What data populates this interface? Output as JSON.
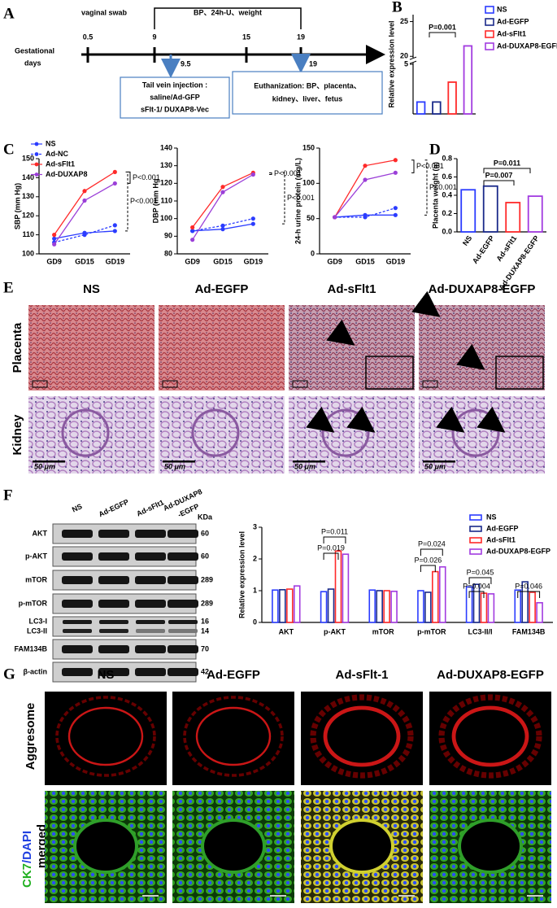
{
  "panels": [
    "A",
    "B",
    "C",
    "D",
    "E",
    "F",
    "G"
  ],
  "timeline": {
    "axis_label": [
      "Gestational",
      "days"
    ],
    "vaginal_swab": "vaginal swab",
    "measure": "BP、24h-U、weight",
    "ticks": [
      "0.5",
      "9",
      "15",
      "19"
    ],
    "arrows": [
      "9.5",
      "19"
    ],
    "box_injection": [
      "Tail vein injection :",
      "saline/Ad-GFP",
      "sFlt-1/ DUXAP8-Vec"
    ],
    "box_euthanization": [
      "Euthanization: BP、placenta、",
      "kidney、liver、fetus"
    ]
  },
  "chart_data": [
    {
      "type": "bar",
      "y_label": "Relative expression level",
      "categories": [
        "NS",
        "Ad-EGFP",
        "Ad-sFlt1",
        "Ad-DUXAP8-EGFP"
      ],
      "values": [
        1.2,
        1.2,
        3.2,
        21.5
      ],
      "colors": [
        "#2b3cff",
        "#1a2a8a",
        "#ff2a2a",
        "#a23be0"
      ],
      "ylim": [
        0,
        26
      ],
      "ybreak": [
        5,
        20
      ],
      "yticks": [
        5,
        20,
        25
      ],
      "legend": true,
      "annotations": [
        "P=0.001"
      ]
    },
    {
      "type": "line",
      "y_label": "SBP (mm Hg)",
      "categories": [
        "GD9",
        "GD15",
        "GD19"
      ],
      "ylim": [
        100,
        150
      ],
      "yticks": [
        100,
        110,
        120,
        130,
        140,
        150
      ],
      "legend": true,
      "series": [
        {
          "name": "NS",
          "color": "#2b3cff",
          "dashed": false,
          "values": [
            108,
            111,
            112
          ]
        },
        {
          "name": "Ad-NC",
          "color": "#2b3cff",
          "dashed": true,
          "values": [
            106,
            110,
            115
          ]
        },
        {
          "name": "Ad-sFlt1",
          "color": "#ff2a2a",
          "dashed": false,
          "values": [
            110,
            133,
            143
          ]
        },
        {
          "name": "Ad-DUXAP8",
          "color": "#9b3fd8",
          "dashed": false,
          "values": [
            105,
            128,
            137
          ]
        }
      ],
      "annotations": [
        "P<0.001",
        "P<0.001"
      ]
    },
    {
      "type": "line",
      "y_label": "DBP (mm Hg",
      "categories": [
        "GD9",
        "GD15",
        "GD19"
      ],
      "ylim": [
        80,
        140
      ],
      "yticks": [
        80,
        90,
        100,
        110,
        120,
        130,
        140
      ],
      "legend": false,
      "series": [
        {
          "color": "#2b3cff",
          "dashed": false,
          "values": [
            93,
            94,
            97
          ]
        },
        {
          "color": "#2b3cff",
          "dashed": true,
          "values": [
            93,
            96,
            100
          ]
        },
        {
          "color": "#ff2a2a",
          "dashed": false,
          "values": [
            95,
            118,
            126
          ]
        },
        {
          "color": "#9b3fd8",
          "dashed": false,
          "values": [
            88,
            115,
            125
          ]
        }
      ],
      "annotations": [
        "P<0.001",
        "P<0.001"
      ]
    },
    {
      "type": "line",
      "y_label": "24-h urine protein (mg/L)",
      "categories": [
        "GD9",
        "GD15",
        "GD19"
      ],
      "ylim": [
        0,
        150
      ],
      "yticks": [
        0,
        50,
        100,
        150
      ],
      "legend": false,
      "series": [
        {
          "color": "#2b3cff",
          "dashed": false,
          "values": [
            52,
            55,
            55
          ]
        },
        {
          "color": "#2b3cff",
          "dashed": true,
          "values": [
            52,
            52,
            65
          ]
        },
        {
          "color": "#ff2a2a",
          "dashed": false,
          "values": [
            52,
            125,
            133
          ]
        },
        {
          "color": "#9b3fd8",
          "dashed": false,
          "values": [
            52,
            105,
            115
          ]
        }
      ],
      "annotations": [
        "P<0.001",
        "P<0.001"
      ]
    },
    {
      "type": "bar",
      "y_label": "Placenta weight (g)",
      "categories": [
        "NS",
        "Ad-EGFP",
        "Ad-sFlt1",
        "Ad-DUXAP8-EGFP"
      ],
      "values": [
        0.46,
        0.5,
        0.32,
        0.39
      ],
      "colors": [
        "#2b3cff",
        "#1a2a8a",
        "#ff2a2a",
        "#a23be0"
      ],
      "ylim": [
        0,
        0.8
      ],
      "yticks": [
        {
          "value": 0,
          "label": "0.0"
        },
        0.2,
        0.4,
        0.6,
        0.8
      ],
      "legend": false,
      "annotations": [
        "P=0.011",
        "P=0.007"
      ]
    },
    {
      "type": "grouped_bar",
      "y_label": "Relative expression level",
      "categories": [
        "AKT",
        "p-AKT",
        "mTOR",
        "p-mTOR",
        "LC3-II/I",
        "FAM134B"
      ],
      "ylim": [
        0,
        3
      ],
      "yticks": [
        0,
        1,
        2,
        3
      ],
      "legend": true,
      "series": [
        {
          "name": "NS",
          "color": "#2b3cff",
          "values": [
            1.02,
            0.97,
            1.02,
            1.0,
            1.12,
            1.02
          ]
        },
        {
          "name": "Ad-EGFP",
          "color": "#1a2a8a",
          "values": [
            1.03,
            1.05,
            1.0,
            0.95,
            1.2,
            1.28
          ]
        },
        {
          "name": "Ad-sFlt1",
          "color": "#ff2a2a",
          "values": [
            1.05,
            2.25,
            1.0,
            1.6,
            0.92,
            0.95
          ]
        },
        {
          "name": "Ad-DUXAP8-EGFP",
          "color": "#a23be0",
          "values": [
            1.15,
            2.15,
            0.98,
            1.75,
            0.9,
            0.62
          ]
        }
      ],
      "annotations": [
        "P=0.011",
        "P=0.019",
        "P=0.024",
        "P=0.026",
        "P=0.045",
        "P=0.004",
        "P=0.046"
      ]
    }
  ],
  "histology": {
    "columns": [
      "NS",
      "Ad-EGFP",
      "Ad-sFlt1",
      "Ad-DUXAP8-EGFP"
    ],
    "rows": [
      "Placenta",
      "Kidney"
    ],
    "scale_bar": "50 μm"
  },
  "western_blot": {
    "lanes": [
      "NS",
      "Ad-EGFP",
      "Ad-sFlt1",
      "Ad-DUXAP8",
      "-EGFP"
    ],
    "kda_header": "KDa",
    "proteins": [
      {
        "name": "AKT",
        "kda": "60"
      },
      {
        "name": "p-AKT",
        "kda": "60"
      },
      {
        "name": "mTOR",
        "kda": "289"
      },
      {
        "name": "p-mTOR",
        "kda": "289"
      },
      {
        "name": "LC3-I",
        "kda": "16"
      },
      {
        "name": "LC3-II",
        "kda": "14"
      },
      {
        "name": "FAM134B",
        "kda": "70"
      },
      {
        "name": "β-actin",
        "kda": "42"
      }
    ]
  },
  "immunofluorescence": {
    "columns": [
      "NS",
      "Ad-EGFP",
      "Ad-sFlt-1",
      "Ad-DUXAP8-EGFP"
    ],
    "row_aggresome": "Aggresome",
    "row_merged": [
      "CK7",
      "/DAPI",
      "merged"
    ]
  }
}
